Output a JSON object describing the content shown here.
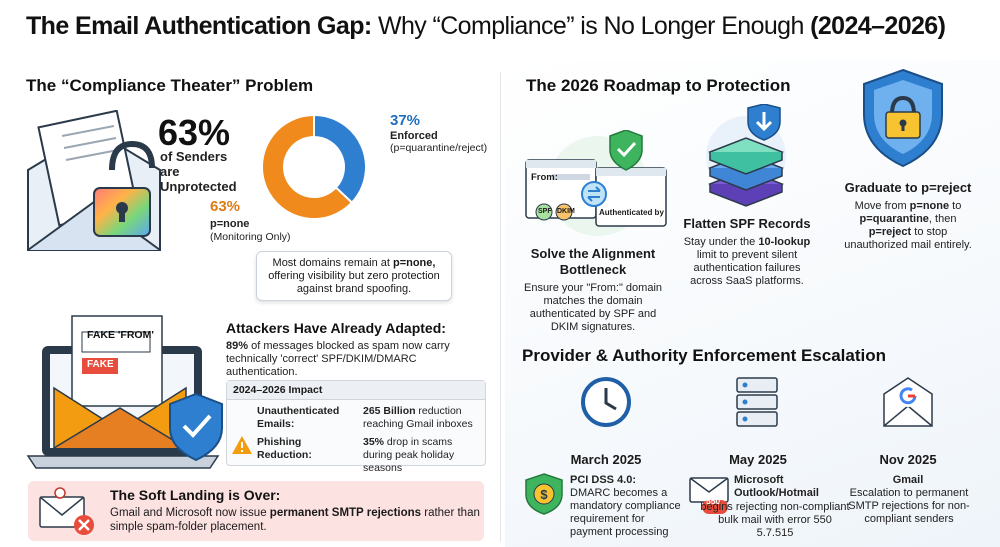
{
  "title": {
    "part1": "The Email Authentication Gap:",
    "part2": "Why “Compliance” is No Longer Enough",
    "part3": "(2024–2026)"
  },
  "left": {
    "header": "The “Compliance Theater” Problem",
    "stat_big": "63%",
    "stat_caption": "of Senders are Unprotected",
    "donut": {
      "none_pct": "63%",
      "none_label": "p=none",
      "none_sub": "(Monitoring Only)",
      "enforced_pct": "37%",
      "enforced_label": "Enforced",
      "enforced_sub": "(p=quarantine/reject)",
      "none_value": 63,
      "enforced_value": 37,
      "none_color": "#f08a1c",
      "enforced_color": "#2f7fd0"
    },
    "callout": {
      "pre": "Most domains remain at ",
      "strong": "p=none,",
      "post": " offering visibility but zero protection against brand spoofing."
    },
    "attack": {
      "header": "Attackers Have Already Adapted:",
      "pct": "89%",
      "text": " of messages blocked as spam now carry technically 'correct' SPF/DKIM/DMARC authentication.",
      "fake_from": "FAKE 'FROM'",
      "fake": "FAKE"
    },
    "impact": {
      "header": "2024–2026 Impact",
      "row1_label": "Unauthenticated Emails:",
      "row1_strong": "265 Billion",
      "row1_text": " reduction reaching Gmail inboxes",
      "row2_label": "Phishing Reduction:",
      "row2_strong": "35%",
      "row2_text": " drop in scams during peak holiday seasons"
    },
    "banner": {
      "header": "The Soft Landing is Over:",
      "pre": "Gmail and Microsoft now issue ",
      "strong": "permanent SMTP rejections",
      "post": " rather than simple spam-folder placement."
    }
  },
  "right": {
    "header": "The 2026 Roadmap to Protection",
    "step1": {
      "title": "Solve the Alignment Bottleneck",
      "text": "Ensure your \"From:\" domain matches the domain authenticated by SPF and DKIM signatures.",
      "from_label": "From:",
      "spf": "SPF",
      "dkim": "DKIM",
      "auth_label": "Authenticated by"
    },
    "step2": {
      "title": "Flatten SPF Records",
      "pre": "Stay under the ",
      "strong": "10-lookup",
      "post": " limit to prevent silent authentication failures across SaaS platforms."
    },
    "step3": {
      "title": "Graduate to p=reject",
      "pre": "Move from ",
      "s1": "p=none",
      "mid": " to ",
      "s2": "p=quarantine",
      "mid2": ", then ",
      "s3": "p=reject",
      "post": " to stop unauthorized mail entirely."
    },
    "enforcement_header": "Provider & Authority Enforcement Escalation",
    "timeline": [
      {
        "date": "March 2025",
        "title": "PCI DSS 4.0:",
        "text": "DMARC becomes a mandatory compliance requirement for payment processing"
      },
      {
        "date": "May 2025",
        "title": "Microsoft Outlook/Hotmail",
        "text": "begins rejecting non-compliant bulk mail with error 550 5.7.515",
        "badge": "550"
      },
      {
        "date": "Nov 2025",
        "title": "Gmail",
        "text": "Escalation to permanent SMTP rejections for non-compliant senders"
      }
    ]
  }
}
